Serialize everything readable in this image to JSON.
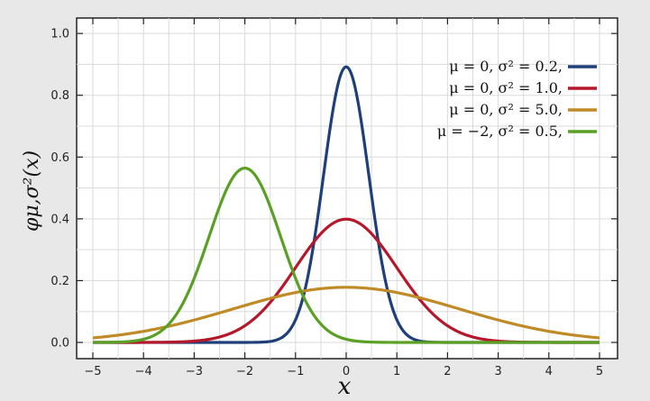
{
  "chart_data": {
    "type": "line",
    "xlabel": "x",
    "ylabel": "φμ,σ²(x)",
    "xlim": [
      -5,
      5
    ],
    "ylim": [
      0,
      1.05
    ],
    "xticks": [
      -5,
      -4,
      -3,
      -2,
      -1,
      0,
      1,
      2,
      3,
      4,
      5
    ],
    "yticks": [
      0.0,
      0.2,
      0.4,
      0.6,
      0.8,
      1.0
    ],
    "xtick_labels": [
      "−5",
      "−4",
      "−3",
      "−2",
      "−1",
      "0",
      "1",
      "2",
      "3",
      "4",
      "5"
    ],
    "ytick_labels": [
      "0.0",
      "0.2",
      "0.4",
      "0.6",
      "0.8",
      "1.0"
    ],
    "grid": true,
    "legend_position": "top-right",
    "series": [
      {
        "name": "μ = 0,   σ² = 0.2,",
        "mu": 0,
        "variance": 0.2,
        "color": "#1f3f7a"
      },
      {
        "name": "μ = 0,   σ² = 1.0,",
        "mu": 0,
        "variance": 1.0,
        "color": "#b5182b"
      },
      {
        "name": "μ = 0,   σ² = 5.0,",
        "mu": 0,
        "variance": 5.0,
        "color": "#c08a26"
      },
      {
        "name": "μ = −2,  σ² = 0.5,",
        "mu": -2,
        "variance": 0.5,
        "color": "#5aa024"
      }
    ]
  }
}
